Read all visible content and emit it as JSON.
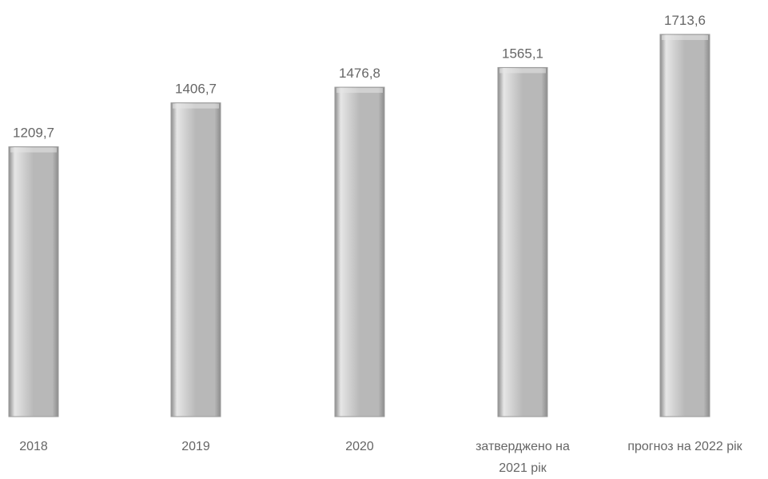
{
  "chart_data": {
    "type": "bar",
    "categories": [
      [
        "2018"
      ],
      [
        "2019"
      ],
      [
        "2020"
      ],
      [
        "затверджено на",
        "2021 рік"
      ],
      [
        "прогноз на 2022 рік"
      ]
    ],
    "values": [
      1209.7,
      1406.7,
      1476.8,
      1565.1,
      1713.6
    ],
    "value_labels": [
      "1209,7",
      "1406,7",
      "1476,8",
      "1565,1",
      "1713,6"
    ],
    "title": "",
    "xlabel": "",
    "ylabel": "",
    "ylim": [
      0,
      1713.6
    ],
    "grid": false,
    "legend": "none",
    "colors": {
      "bar_fill": "#b8b8b8",
      "bar_edge": "#9a9a9a",
      "bar_highlight": "#e6e6e6",
      "bar_shadow": "#8c8c8c",
      "text": "#666666"
    }
  }
}
